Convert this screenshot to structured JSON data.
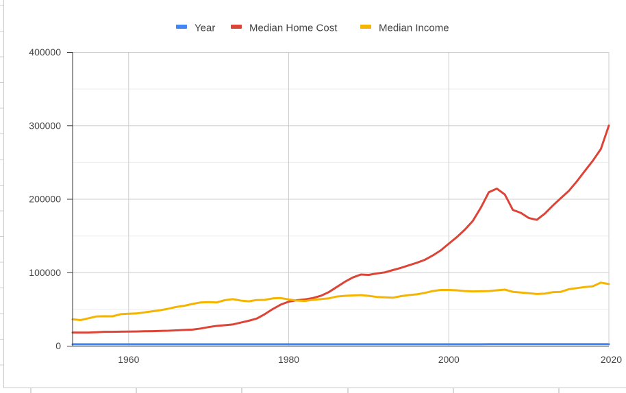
{
  "chart_data": {
    "type": "line",
    "title": "",
    "xlabel": "",
    "ylabel": "",
    "xlim": [
      1953,
      2020
    ],
    "ylim": [
      0,
      400000
    ],
    "x_ticks": [
      1960,
      1980,
      2000,
      2020
    ],
    "y_ticks": [
      0,
      100000,
      200000,
      300000,
      400000
    ],
    "grid": true,
    "legend_position": "top",
    "x": [
      1953,
      1954,
      1955,
      1956,
      1957,
      1958,
      1959,
      1960,
      1961,
      1962,
      1963,
      1964,
      1965,
      1966,
      1967,
      1968,
      1969,
      1970,
      1971,
      1972,
      1973,
      1974,
      1975,
      1976,
      1977,
      1978,
      1979,
      1980,
      1981,
      1982,
      1983,
      1984,
      1985,
      1986,
      1987,
      1988,
      1989,
      1990,
      1991,
      1992,
      1993,
      1994,
      1995,
      1996,
      1997,
      1998,
      1999,
      2000,
      2001,
      2002,
      2003,
      2004,
      2005,
      2006,
      2007,
      2008,
      2009,
      2010,
      2011,
      2012,
      2013,
      2014,
      2015,
      2016,
      2017,
      2018,
      2019,
      2020
    ],
    "series": [
      {
        "name": "Year",
        "color": "#4285f4",
        "values": [
          1953,
          1954,
          1955,
          1956,
          1957,
          1958,
          1959,
          1960,
          1961,
          1962,
          1963,
          1964,
          1965,
          1966,
          1967,
          1968,
          1969,
          1970,
          1971,
          1972,
          1973,
          1974,
          1975,
          1976,
          1977,
          1978,
          1979,
          1980,
          1981,
          1982,
          1983,
          1984,
          1985,
          1986,
          1987,
          1988,
          1989,
          1990,
          1991,
          1992,
          1993,
          1994,
          1995,
          1996,
          1997,
          1998,
          1999,
          2000,
          2001,
          2002,
          2003,
          2004,
          2005,
          2006,
          2007,
          2008,
          2009,
          2010,
          2011,
          2012,
          2013,
          2014,
          2015,
          2016,
          2017,
          2018,
          2019,
          2020
        ]
      },
      {
        "name": "Median Home Cost",
        "color": "#db4437",
        "values": [
          18000,
          18000,
          18000,
          18500,
          19000,
          19000,
          19200,
          19300,
          19500,
          19800,
          20000,
          20300,
          20500,
          21000,
          21500,
          22000,
          23500,
          25500,
          27000,
          28000,
          29000,
          31500,
          34000,
          37000,
          43000,
          50000,
          56000,
          60000,
          62000,
          63000,
          65000,
          68000,
          73000,
          80000,
          87000,
          93000,
          97000,
          96500,
          98500,
          100000,
          103000,
          106000,
          109500,
          113000,
          117000,
          123000,
          130000,
          139000,
          148000,
          158000,
          170000,
          188000,
          209000,
          214000,
          206000,
          185000,
          181000,
          174000,
          171500,
          180000,
          191000,
          201000,
          211000,
          224000,
          238000,
          252000,
          268000,
          300000
        ]
      },
      {
        "name": "Median Income",
        "color": "#f4b400",
        "values": [
          36000,
          35000,
          37500,
          40000,
          40200,
          40100,
          43000,
          43500,
          44000,
          45500,
          47000,
          48500,
          50500,
          53000,
          54500,
          57000,
          59000,
          59500,
          59000,
          62000,
          63500,
          61500,
          60500,
          62300,
          62500,
          64500,
          65000,
          63000,
          61500,
          61000,
          62500,
          63500,
          64500,
          67000,
          68000,
          68500,
          69000,
          68000,
          66500,
          66000,
          65500,
          67500,
          69000,
          70000,
          72000,
          74500,
          76000,
          76000,
          75500,
          74500,
          74000,
          74200,
          74500,
          75500,
          76500,
          73500,
          72500,
          71500,
          70500,
          71000,
          73000,
          73500,
          77000,
          78500,
          80000,
          81000,
          86000,
          84000
        ]
      }
    ]
  }
}
